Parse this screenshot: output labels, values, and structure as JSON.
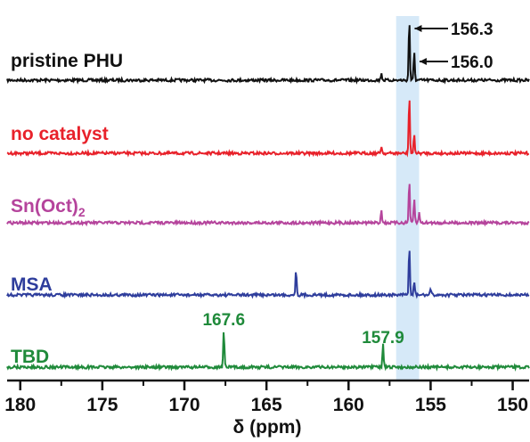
{
  "chart_data": {
    "type": "line",
    "xlabel": "δ (ppm)",
    "xlim": [
      180.8,
      149.0
    ],
    "x_ticks": [
      "180",
      "175",
      "170",
      "165",
      "160",
      "155",
      "150"
    ],
    "tick_values": [
      180,
      175,
      170,
      165,
      160,
      155,
      150
    ],
    "highlight_range": [
      155.7,
      157.1
    ],
    "highlight_color": "#d6e9f8",
    "grid": false,
    "legend": "none",
    "series": [
      {
        "name": "pristine PHU",
        "color": "#111111",
        "peaks": [
          {
            "x": 158.0,
            "h": 0.12
          },
          {
            "x": 156.3,
            "h": 1.0
          },
          {
            "x": 156.0,
            "h": 0.45
          }
        ],
        "annotations": [
          {
            "x": 156.3,
            "text": "156.3"
          },
          {
            "x": 156.0,
            "text": "156.0"
          }
        ]
      },
      {
        "name": "no catalyst",
        "color": "#e8212a",
        "peaks": [
          {
            "x": 158.0,
            "h": 0.12
          },
          {
            "x": 156.3,
            "h": 0.95
          },
          {
            "x": 156.0,
            "h": 0.3
          }
        ],
        "annotations": []
      },
      {
        "name": "Sn(Oct)2",
        "color": "#b5449c",
        "peaks": [
          {
            "x": 158.0,
            "h": 0.22
          },
          {
            "x": 156.3,
            "h": 0.7
          },
          {
            "x": 156.0,
            "h": 0.38
          },
          {
            "x": 155.7,
            "h": 0.16
          }
        ],
        "annotations": []
      },
      {
        "name": "MSA",
        "color": "#2e3d9c",
        "peaks": [
          {
            "x": 163.2,
            "h": 0.42
          },
          {
            "x": 156.3,
            "h": 0.8
          },
          {
            "x": 156.0,
            "h": 0.22
          },
          {
            "x": 155.0,
            "h": 0.1
          }
        ],
        "annotations": []
      },
      {
        "name": "TBD",
        "color": "#1f8a3a",
        "peaks": [
          {
            "x": 167.6,
            "h": 0.6
          },
          {
            "x": 157.9,
            "h": 0.38
          }
        ],
        "annotations": [
          {
            "x": 167.6,
            "text": "167.6"
          },
          {
            "x": 157.9,
            "text": "157.9"
          }
        ]
      }
    ]
  }
}
